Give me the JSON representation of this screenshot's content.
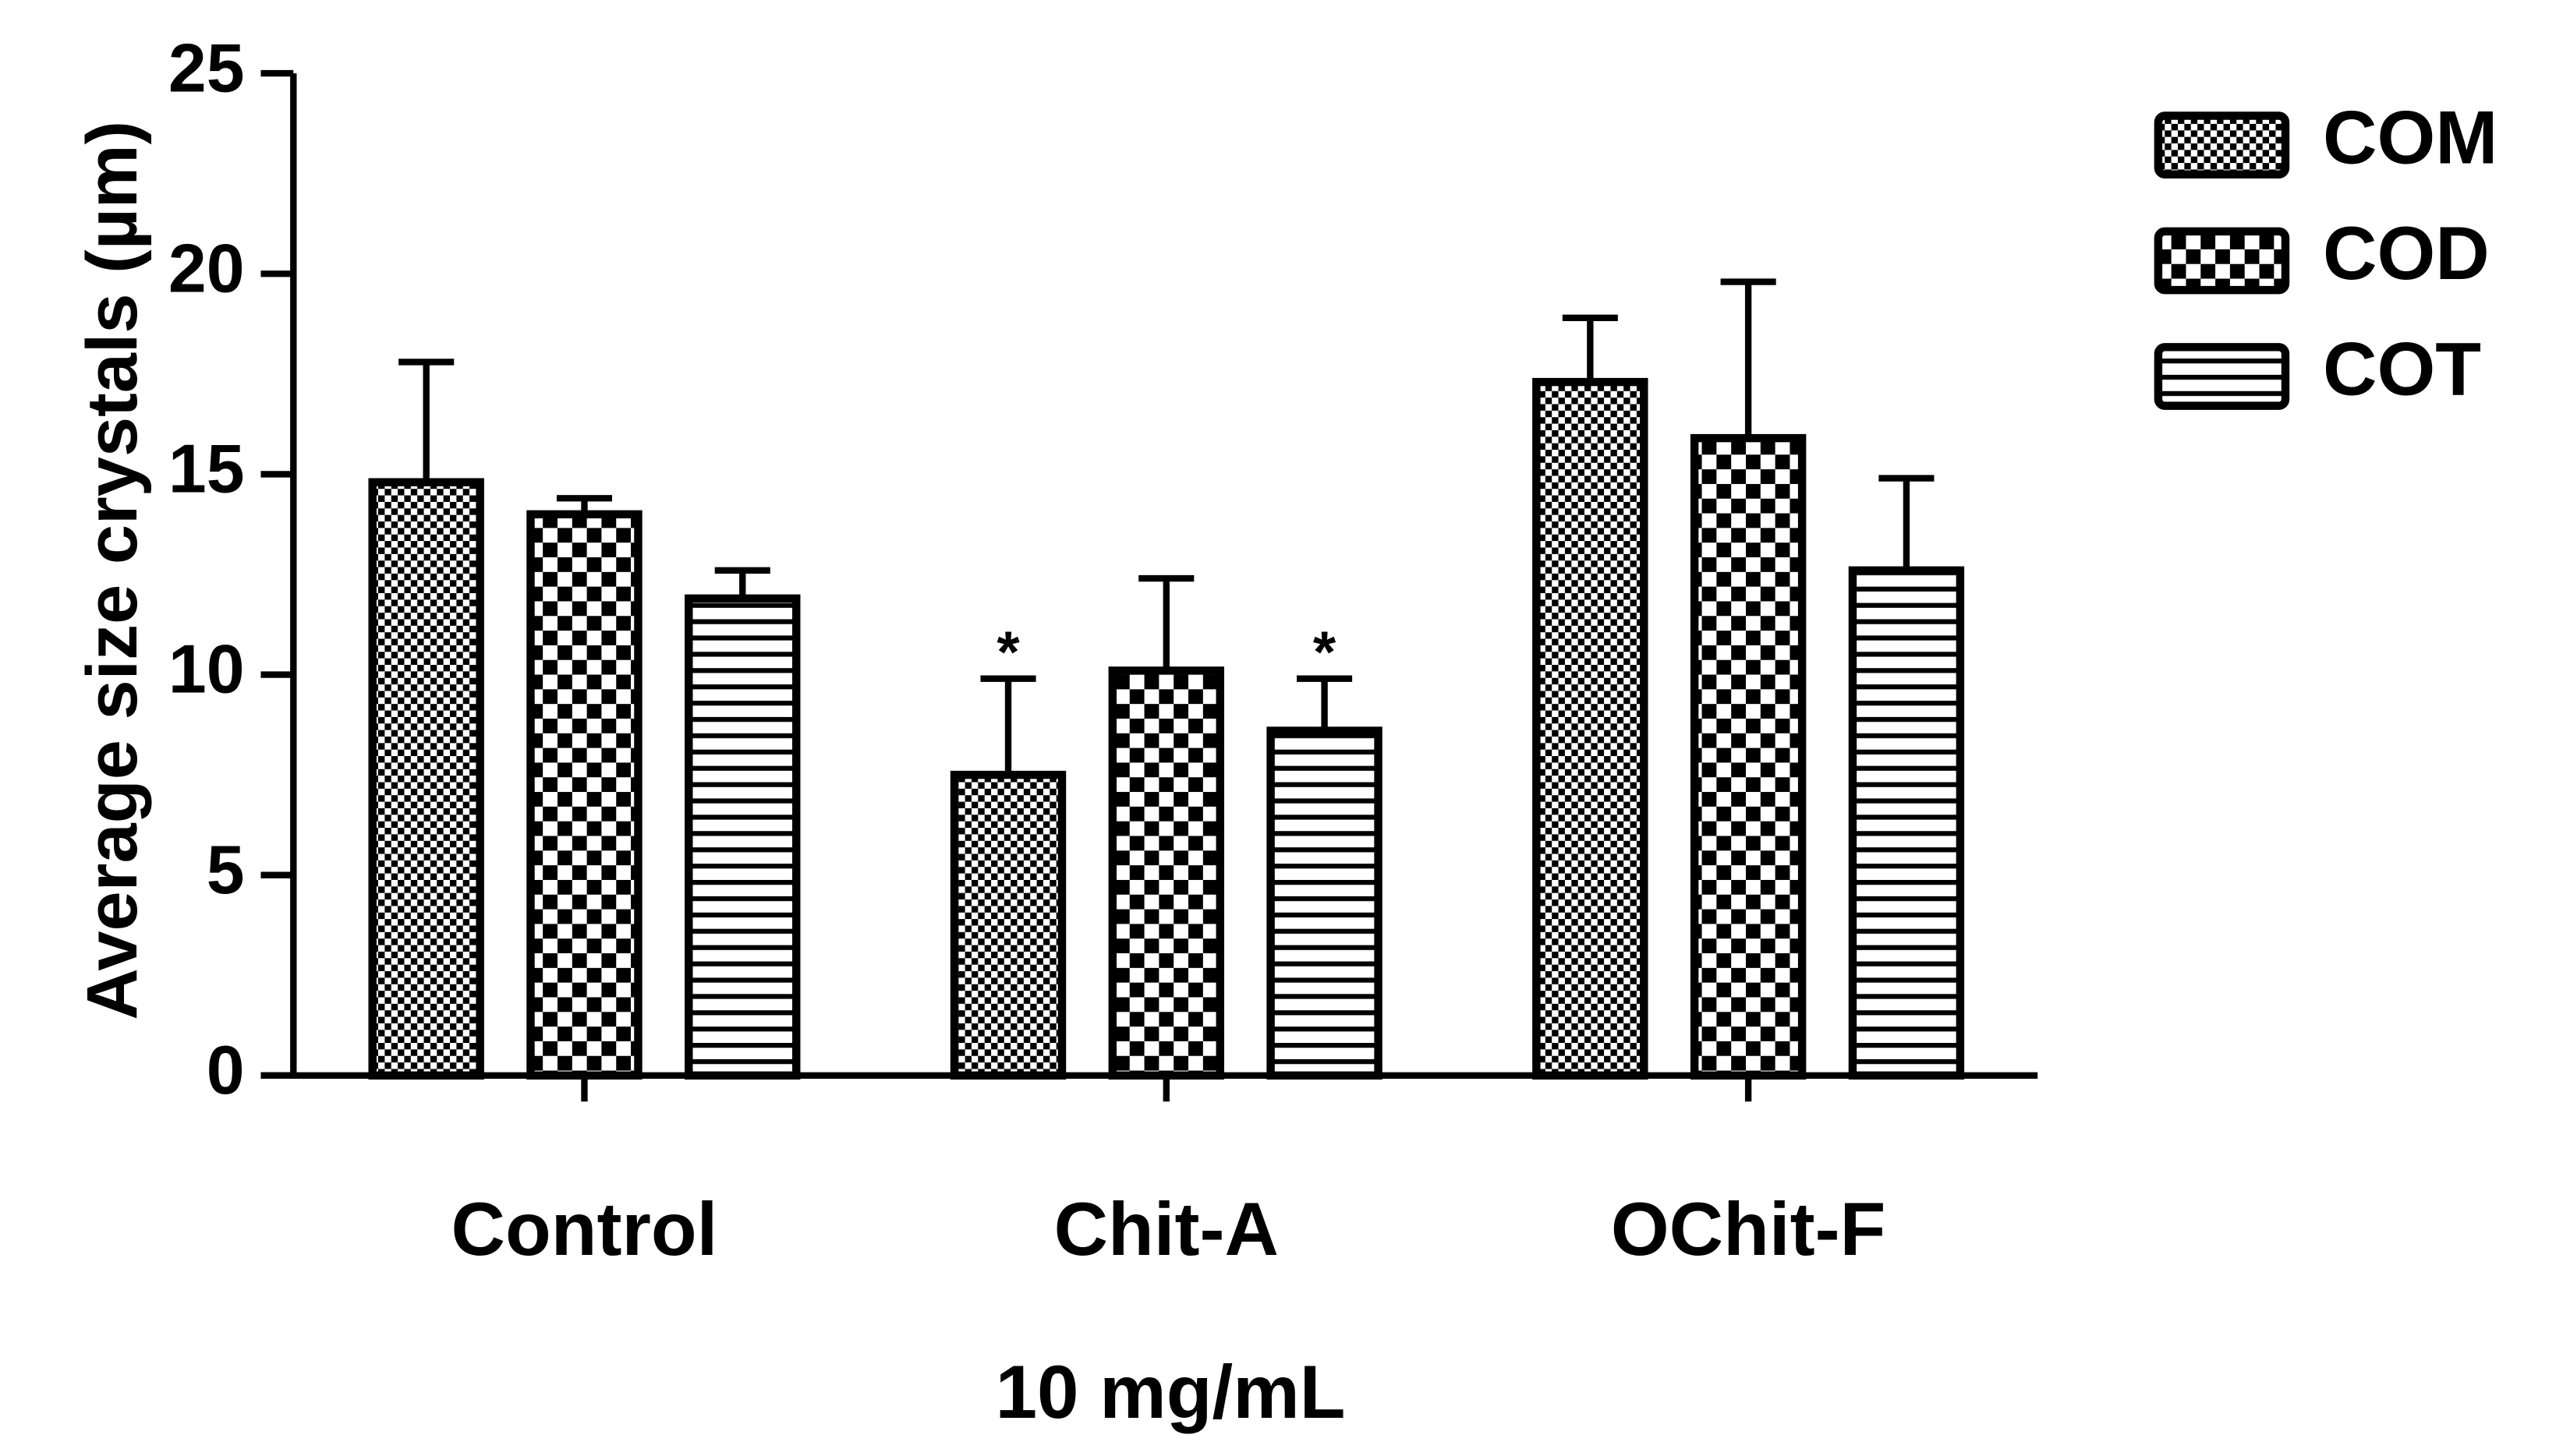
{
  "chart_data": {
    "type": "bar",
    "ylabel": "Average size crystals (µm)",
    "xlabel": "10 mg/mL",
    "categories": [
      "Control",
      "Chit-A",
      "OChit-F"
    ],
    "series": [
      {
        "name": "COM",
        "color": "#000000",
        "values": [
          14.8,
          7.5,
          17.3
        ],
        "errors": [
          3.0,
          2.4,
          1.6
        ]
      },
      {
        "name": "COD",
        "color": "#000000",
        "values": [
          14.0,
          10.1,
          15.9
        ],
        "errors": [
          0.4,
          2.3,
          3.9
        ]
      },
      {
        "name": "COT",
        "color": "#000000",
        "values": [
          11.9,
          8.6,
          12.6
        ],
        "errors": [
          0.7,
          1.3,
          2.3
        ]
      }
    ],
    "annotations": [
      {
        "text": "*",
        "series": 0,
        "category": 1
      },
      {
        "text": "*",
        "series": 2,
        "category": 1
      }
    ],
    "ylim": [
      0,
      25
    ],
    "yticks": [
      0,
      5,
      10,
      15,
      20,
      25
    ],
    "legend": "top-right",
    "grid": false
  }
}
